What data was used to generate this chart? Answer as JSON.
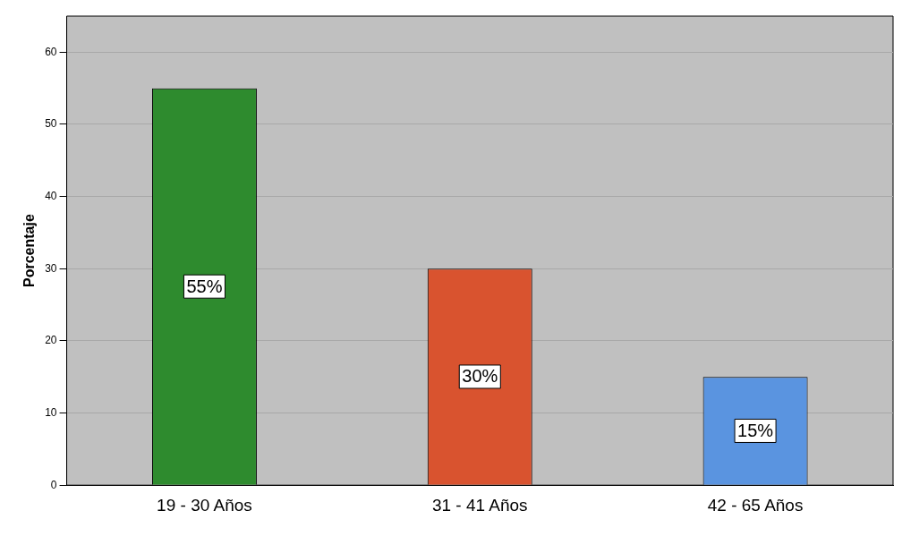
{
  "chart_data": {
    "type": "bar",
    "ylabel": "Porcentaje",
    "categories": [
      "19 - 30 Años",
      "31 - 41 Años",
      "42 - 65 Años"
    ],
    "values": [
      55,
      30,
      15
    ],
    "colors": [
      "#2e8b2e",
      "#d9532f",
      "#5a94e0"
    ],
    "value_labels": [
      "55%",
      "30%",
      "15%"
    ],
    "ylim": [
      0,
      65
    ],
    "yticks": [
      0,
      10,
      20,
      30,
      40,
      50,
      60
    ],
    "grid": "y"
  }
}
